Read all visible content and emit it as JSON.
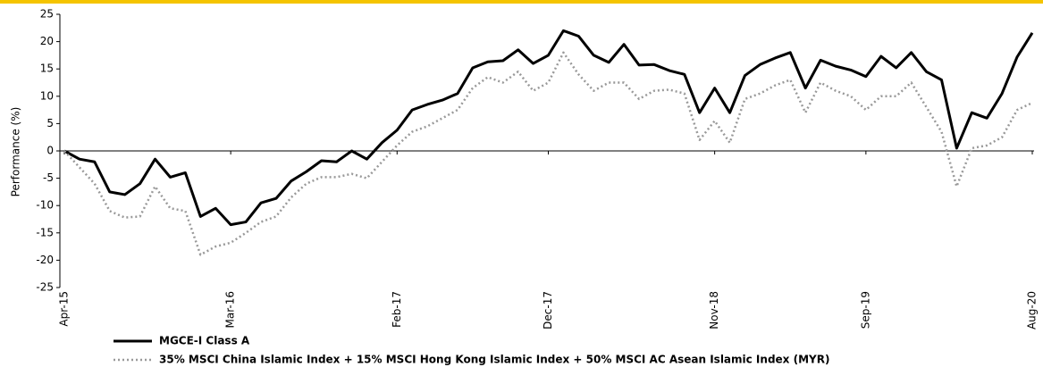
{
  "chart_data": {
    "type": "line",
    "y_label": "Performance (%)",
    "categories": [
      "Apr-15",
      null,
      null,
      null,
      null,
      null,
      null,
      null,
      null,
      null,
      null,
      "Mar-16",
      null,
      null,
      null,
      null,
      null,
      null,
      null,
      null,
      null,
      null,
      "Feb-17",
      null,
      null,
      null,
      null,
      null,
      null,
      null,
      null,
      null,
      "Dec-17",
      null,
      null,
      null,
      null,
      null,
      null,
      null,
      null,
      null,
      null,
      "Nov-18",
      null,
      null,
      null,
      null,
      null,
      null,
      null,
      null,
      null,
      "Sep-19",
      null,
      null,
      null,
      null,
      null,
      null,
      null,
      null,
      null,
      null,
      "Aug-20"
    ],
    "series": [
      {
        "name": "MGCE-I Class A",
        "color": "#000000",
        "style": "solid",
        "values": [
          0,
          -1.5,
          -2,
          -7.5,
          -8,
          -6,
          -1.5,
          -4.8,
          -4,
          -12,
          -10.5,
          -13.5,
          -13,
          -9.5,
          -8.7,
          -5.5,
          -3.8,
          -1.8,
          -2,
          0,
          -1.5,
          1.5,
          3.8,
          7.5,
          8.5,
          9.3,
          10.5,
          15.2,
          16.3,
          16.5,
          18.5,
          16,
          17.5,
          22,
          21,
          17.5,
          16.2,
          19.5,
          15.7,
          15.8,
          14.7,
          14,
          7,
          11.5,
          7,
          13.8,
          15.8,
          17,
          18,
          11.5,
          16.6,
          15.5,
          14.8,
          13.6,
          17.3,
          15.2,
          18,
          14.5,
          13,
          0.5,
          7,
          6,
          10.5,
          17.2,
          21.6
        ]
      },
      {
        "name": "35% MSCI China Islamic Index + 15% MSCI Hong Kong Islamic Index + 50% MSCI AC Asean Islamic Index (MYR)",
        "color": "#999999",
        "style": "dotted",
        "values": [
          0,
          -3,
          -6,
          -11,
          -12.2,
          -12,
          -6.5,
          -10.5,
          -11,
          -19,
          -17.5,
          -16.8,
          -15,
          -13,
          -12,
          -8.5,
          -6,
          -4.8,
          -4.8,
          -4.2,
          -5,
          -2,
          1,
          3.5,
          4.5,
          6,
          7.5,
          11.5,
          13.5,
          12.5,
          14.5,
          11,
          12.5,
          18,
          14,
          11,
          12.5,
          12.5,
          9.5,
          11,
          11.2,
          10.5,
          2,
          5.5,
          1.5,
          9.5,
          10.5,
          12,
          13,
          7,
          12.5,
          11,
          10,
          7.5,
          10,
          10,
          12.5,
          8,
          3.5,
          -6.5,
          0.5,
          1,
          2.5,
          7.5,
          8.8
        ]
      }
    ],
    "ylim": [
      -25,
      25
    ],
    "yticks": [
      -25,
      -20,
      -15,
      -10,
      -5,
      0,
      5,
      10,
      15,
      20,
      25
    ],
    "grid": false,
    "legend": "bottom"
  }
}
